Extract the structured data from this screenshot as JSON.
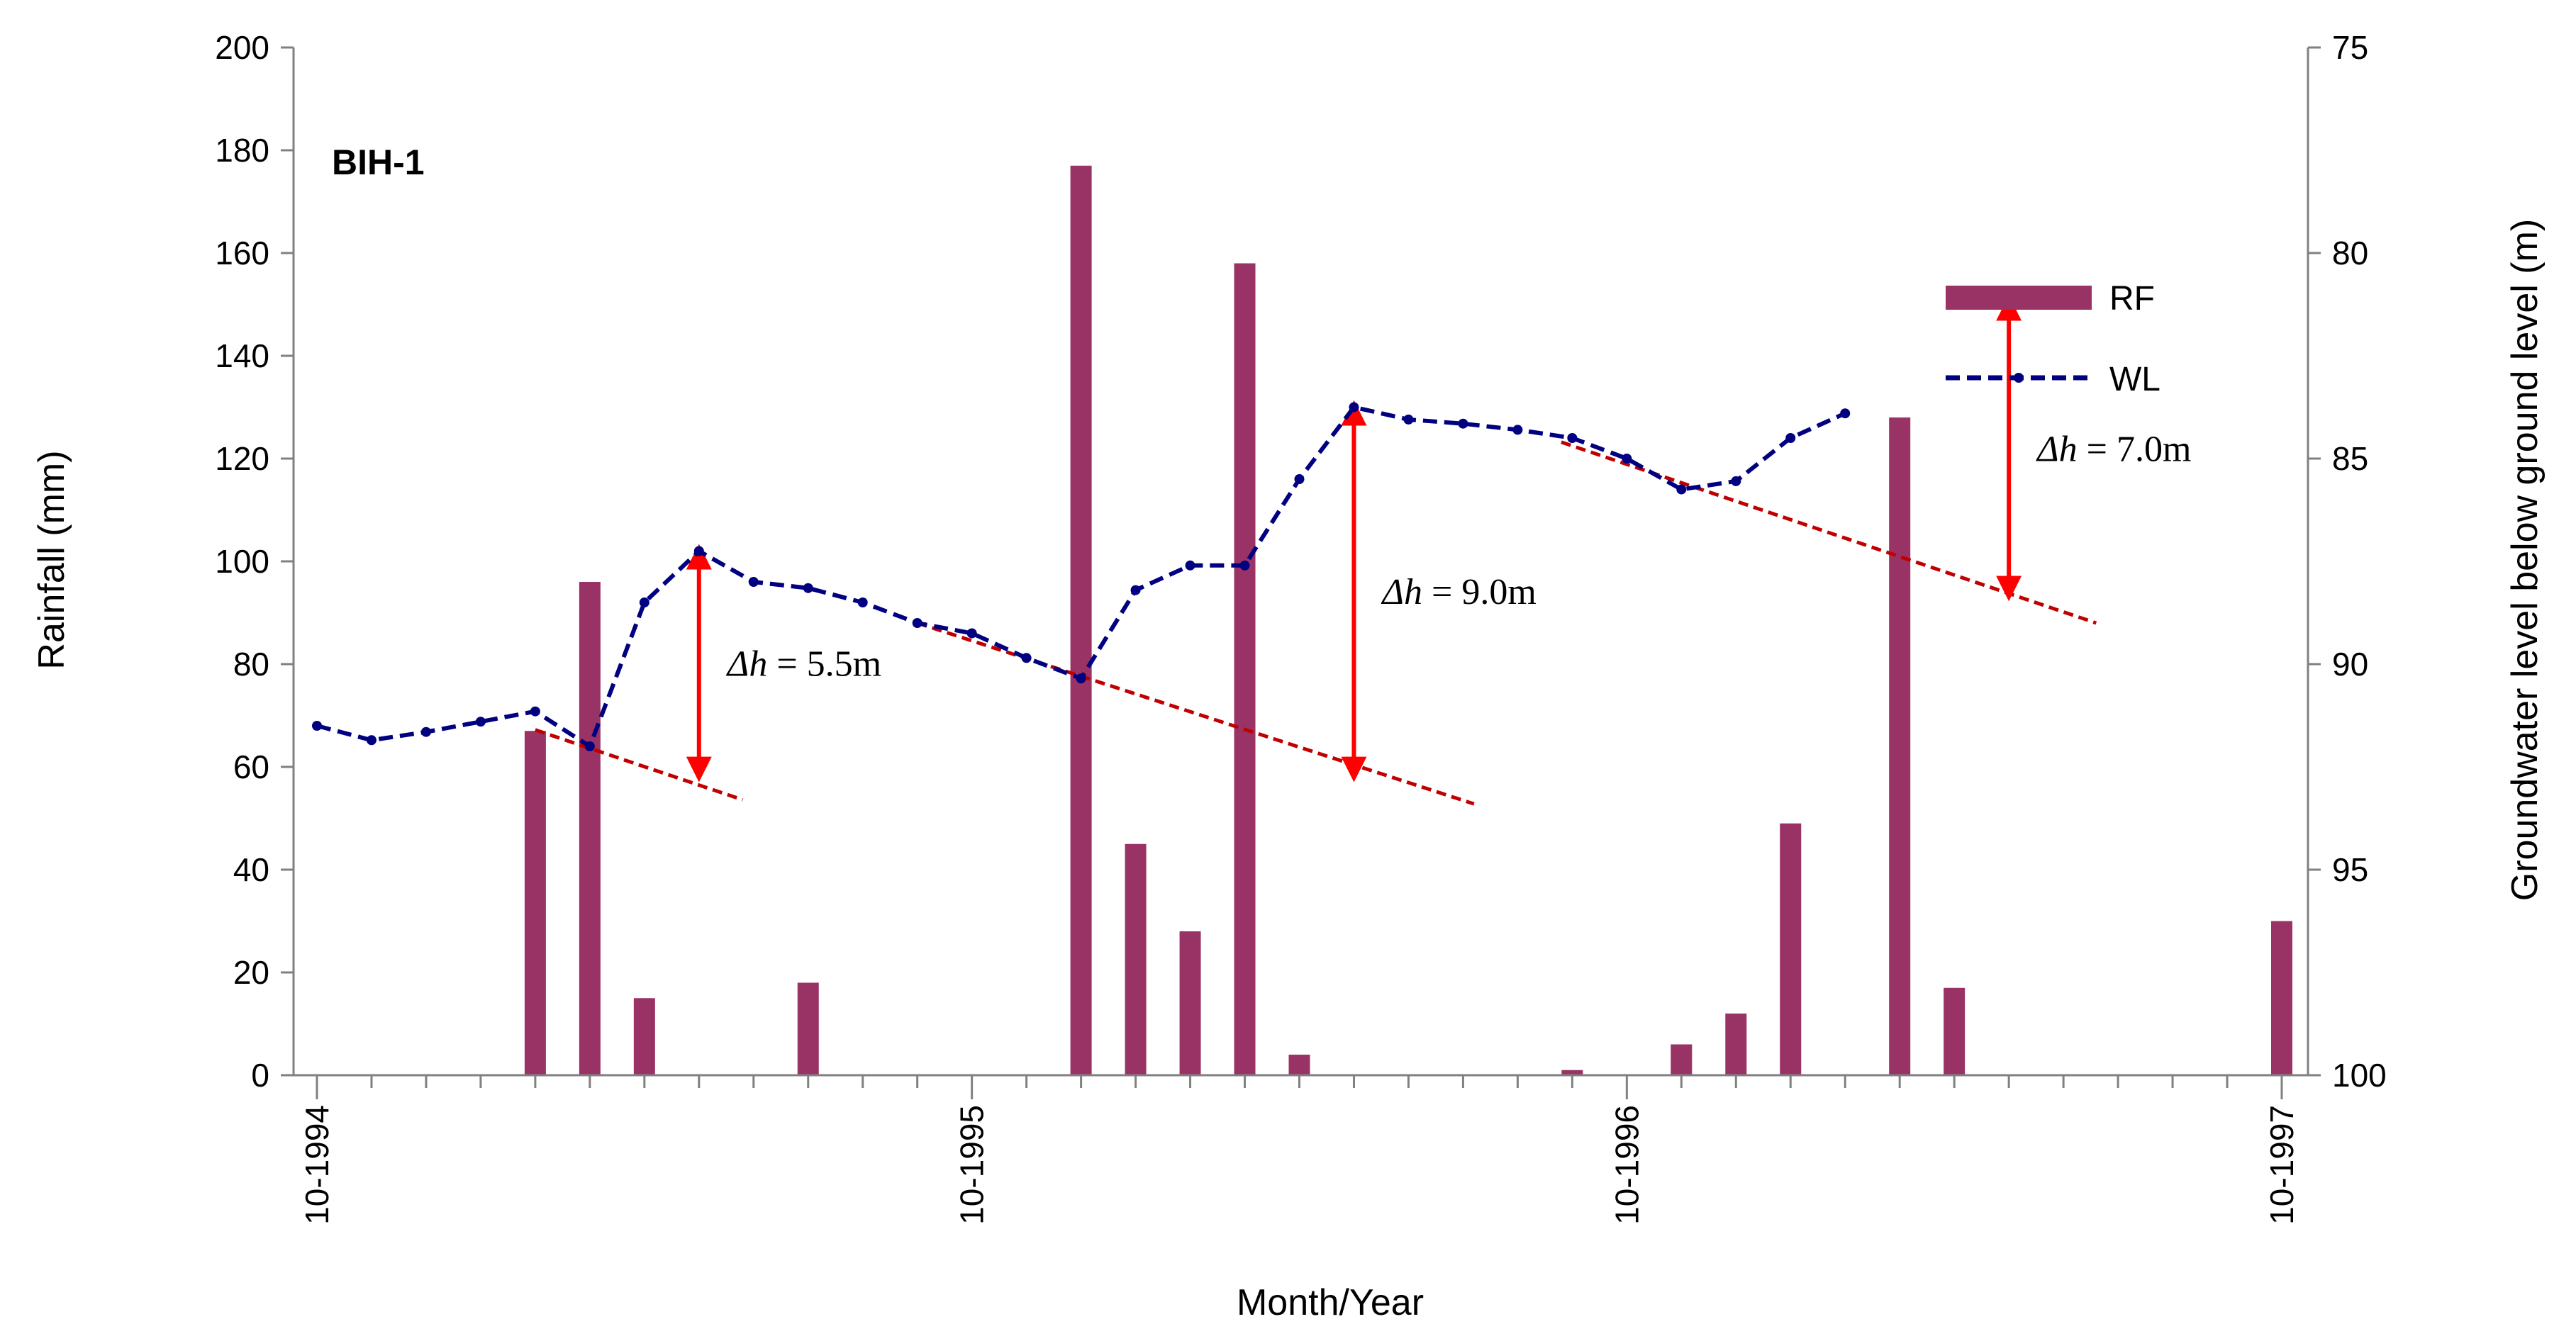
{
  "chart_data": {
    "type": "bar+line",
    "panel_label": "BIH-1",
    "xlabel": "Month/Year",
    "ylabel_left": "Rainfall (mm)",
    "ylabel_right": "Groundwater level below ground level  (m)",
    "ylim_left": [
      0,
      200
    ],
    "yticks_left": [
      "0",
      "20",
      "40",
      "60",
      "80",
      "100",
      "120",
      "140",
      "160",
      "180",
      "200"
    ],
    "ylim_right_inverted": [
      75,
      100
    ],
    "yticks_right": [
      "75",
      "80",
      "85",
      "90",
      "95",
      "100"
    ],
    "x_month_count": 36,
    "x_tick_labels": [
      {
        "month": 0,
        "label": "10-1994"
      },
      {
        "month": 12,
        "label": "10-1995"
      },
      {
        "month": 24,
        "label": "10-1996"
      },
      {
        "month": 36,
        "label": "10-1997"
      }
    ],
    "rainfall": {
      "name": "RF",
      "color": "#993366",
      "bars": [
        {
          "month": 4,
          "value": 67
        },
        {
          "month": 5,
          "value": 96
        },
        {
          "month": 6,
          "value": 15
        },
        {
          "month": 9,
          "value": 18
        },
        {
          "month": 14,
          "value": 177
        },
        {
          "month": 15,
          "value": 45
        },
        {
          "month": 16,
          "value": 28
        },
        {
          "month": 17,
          "value": 158
        },
        {
          "month": 18,
          "value": 4
        },
        {
          "month": 23,
          "value": 1
        },
        {
          "month": 25,
          "value": 6
        },
        {
          "month": 26,
          "value": 12
        },
        {
          "month": 27,
          "value": 49
        },
        {
          "month": 29,
          "value": 128
        },
        {
          "month": 30,
          "value": 17
        },
        {
          "month": 36,
          "value": 30
        }
      ]
    },
    "water_level": {
      "name": "WL",
      "color": "#000080",
      "points": [
        {
          "month": 0,
          "value": 91.5
        },
        {
          "month": 1,
          "value": 91.85
        },
        {
          "month": 2,
          "value": 91.65
        },
        {
          "month": 3,
          "value": 91.4
        },
        {
          "month": 4,
          "value": 91.15
        },
        {
          "month": 5,
          "value": 92.0
        },
        {
          "month": 6,
          "value": 88.5
        },
        {
          "month": 7,
          "value": 87.25
        },
        {
          "month": 8,
          "value": 88.0
        },
        {
          "month": 9,
          "value": 88.15
        },
        {
          "month": 10,
          "value": 88.5
        },
        {
          "month": 11,
          "value": 89.0
        },
        {
          "month": 12,
          "value": 89.25
        },
        {
          "month": 13,
          "value": 89.85
        },
        {
          "month": 14,
          "value": 90.35
        },
        {
          "month": 15,
          "value": 88.2
        },
        {
          "month": 16,
          "value": 87.6
        },
        {
          "month": 17,
          "value": 87.6
        },
        {
          "month": 18,
          "value": 85.5
        },
        {
          "month": 19,
          "value": 83.75
        },
        {
          "month": 20,
          "value": 84.05
        },
        {
          "month": 21,
          "value": 84.15
        },
        {
          "month": 22,
          "value": 84.3
        },
        {
          "month": 23,
          "value": 84.5
        },
        {
          "month": 24,
          "value": 85.0
        },
        {
          "month": 25,
          "value": 85.75
        },
        {
          "month": 26,
          "value": 85.55
        },
        {
          "month": 27,
          "value": 84.5
        },
        {
          "month": 28,
          "value": 83.9
        }
      ]
    },
    "recession_lines": [
      {
        "from": {
          "month": 4.0,
          "value": 91.6
        },
        "to": {
          "month": 7.8,
          "value": 93.3
        }
      },
      {
        "from": {
          "month": 11.0,
          "value": 89.0
        },
        "to": {
          "month": 21.2,
          "value": 93.4
        }
      },
      {
        "from": {
          "month": 22.8,
          "value": 84.6
        },
        "to": {
          "month": 32.6,
          "value": 89.0
        }
      }
    ],
    "delta_arrows": [
      {
        "month": 7.0,
        "from_value": 87.25,
        "to_value": 92.7,
        "label": "= 5.5m"
      },
      {
        "month": 19.0,
        "from_value": 83.75,
        "to_value": 92.7,
        "label": "= 9.0m"
      },
      {
        "month": 31.0,
        "from_value": 81.2,
        "to_value": 88.3,
        "label": "= 7.0m"
      }
    ],
    "delta_symbol": "Δh",
    "recession_color": "#C00000",
    "arrow_color": "#FF0000",
    "legend": [
      {
        "key": "RF",
        "label": "RF"
      },
      {
        "key": "WL",
        "label": "WL"
      }
    ]
  }
}
